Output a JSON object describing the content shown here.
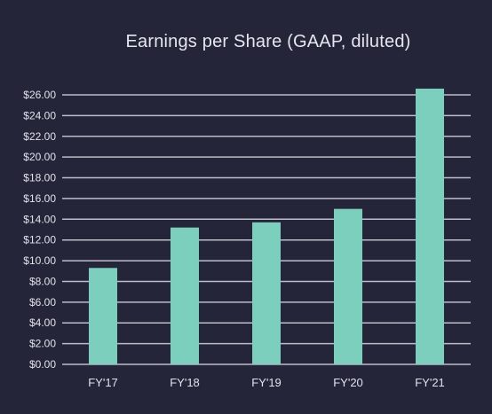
{
  "chart_data": {
    "type": "bar",
    "title": "Earnings per Share (GAAP, diluted)",
    "xlabel": "",
    "ylabel": "",
    "categories": [
      "FY'17",
      "FY'18",
      "FY'19",
      "FY'20",
      "FY'21"
    ],
    "values": [
      9.3,
      13.2,
      13.7,
      15.0,
      26.8
    ],
    "ylim": [
      0,
      26
    ],
    "yticks": [
      "$0.00",
      "$2.00",
      "$4.00",
      "$6.00",
      "$8.00",
      "$10.00",
      "$12.00",
      "$14.00",
      "$16.00",
      "$18.00",
      "$20.00",
      "$22.00",
      "$24.00",
      "$26.00"
    ],
    "ytick_step": 2,
    "grid": true,
    "legend": "none"
  },
  "colors": {
    "background": "#25253a",
    "bar": "#7ccfbc",
    "grid": "#bdbdc8",
    "text": "#e2e2ea"
  }
}
